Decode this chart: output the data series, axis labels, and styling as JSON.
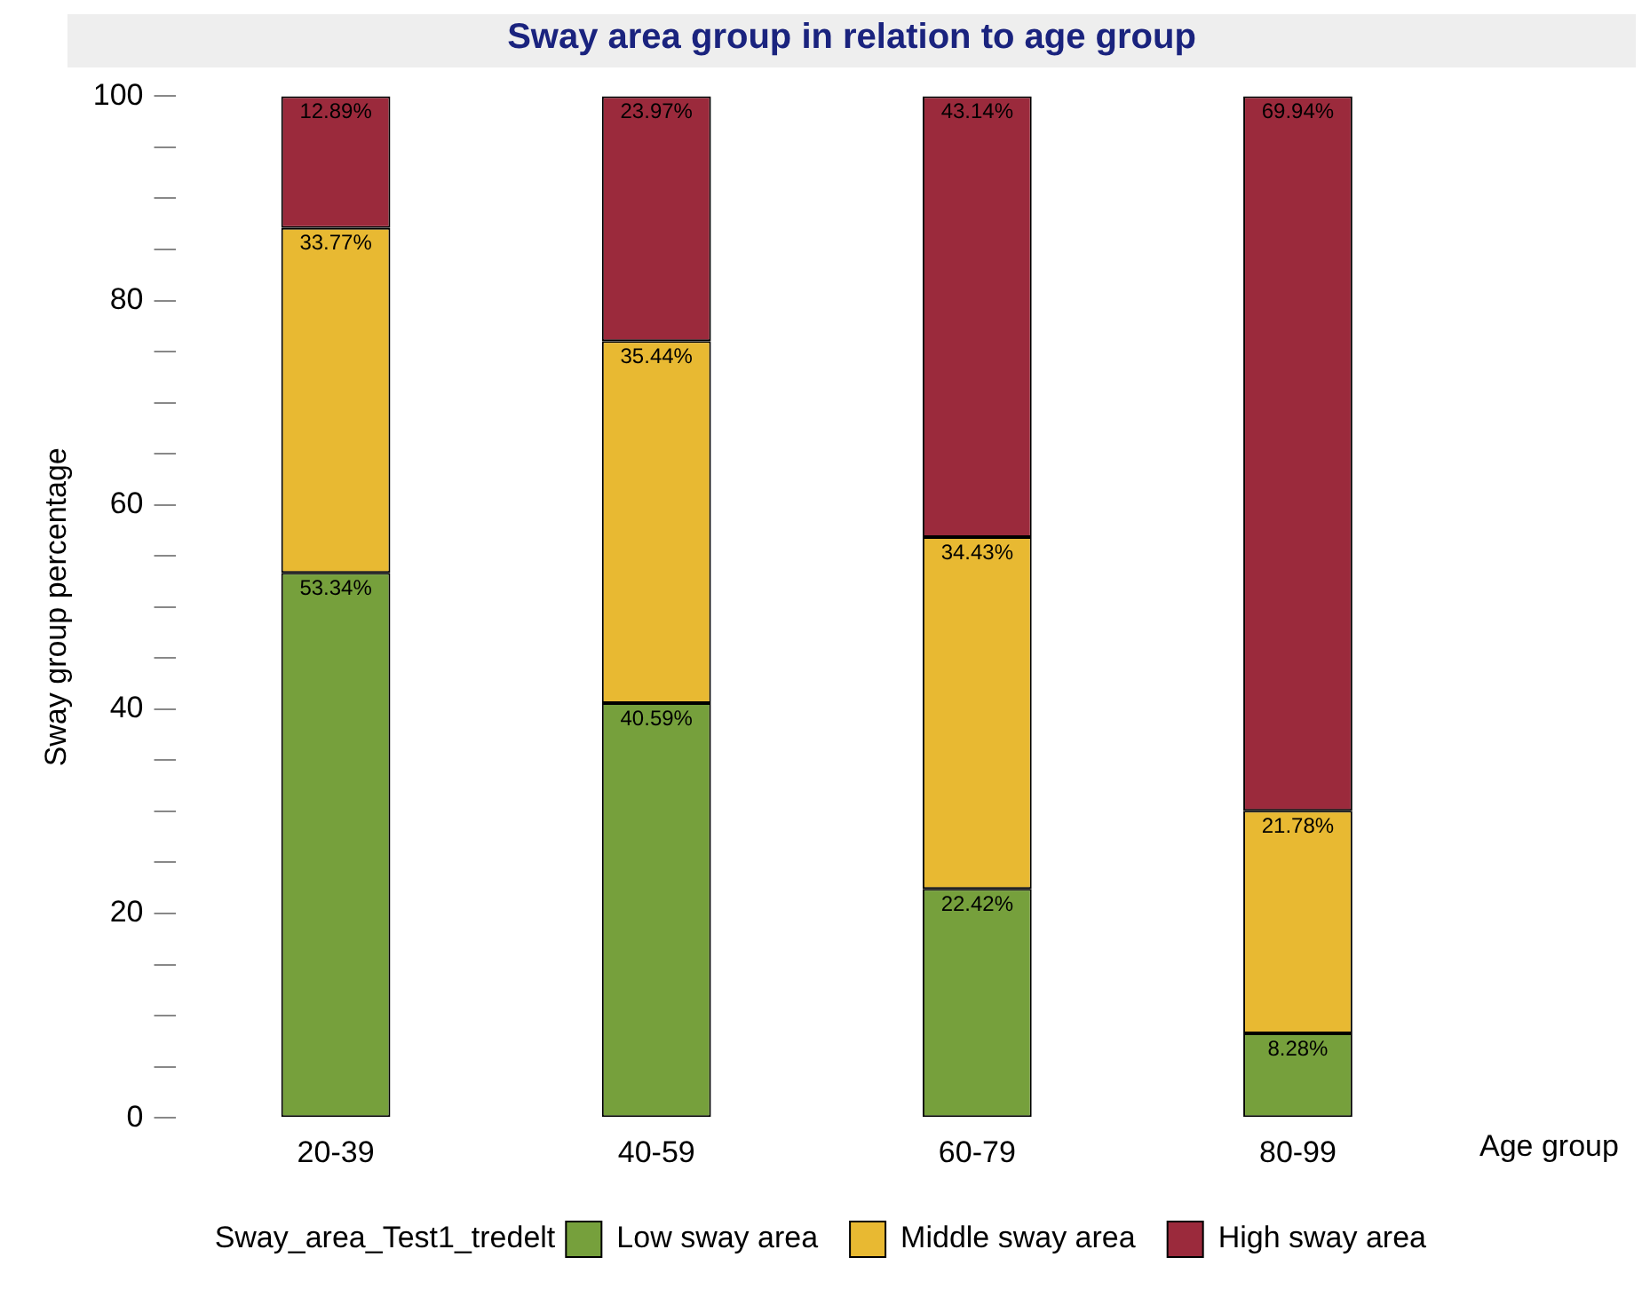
{
  "chart_data": {
    "type": "bar",
    "title": "Sway area group in relation to age group",
    "xlabel": "Age group",
    "ylabel": "Sway group percentage",
    "legend_title": "Sway_area_Test1_tredelt",
    "categories": [
      "20-39",
      "40-59",
      "60-79",
      "80-99"
    ],
    "stacked": true,
    "series": [
      {
        "name": "Low sway area",
        "color": "#76a03c",
        "values": [
          53.34,
          40.59,
          22.42,
          8.28
        ],
        "value_labels": [
          "53.34%",
          "40.59%",
          "22.42%",
          "8.28%"
        ]
      },
      {
        "name": "Middle sway area",
        "color": "#e8b932",
        "values": [
          33.77,
          35.44,
          34.43,
          21.78
        ],
        "value_labels": [
          "33.77%",
          "35.44%",
          "34.43%",
          "21.78%"
        ]
      },
      {
        "name": "High sway area",
        "color": "#9b2a3c",
        "values": [
          12.89,
          23.97,
          43.14,
          69.94
        ],
        "value_labels": [
          "12.89%",
          "23.97%",
          "43.14%",
          "69.94%"
        ]
      }
    ],
    "ylim": [
      0,
      100
    ],
    "yticks": [
      0,
      {
        "value": 5,
        "label": null
      },
      {
        "value": 10,
        "label": null
      },
      {
        "value": 15,
        "label": null
      },
      20,
      {
        "value": 25,
        "label": null
      },
      {
        "value": 30,
        "label": null
      },
      {
        "value": 35,
        "label": null
      },
      40,
      {
        "value": 45,
        "label": null
      },
      {
        "value": 50,
        "label": null
      },
      {
        "value": 55,
        "label": null
      },
      60,
      {
        "value": 65,
        "label": null
      },
      {
        "value": 70,
        "label": null
      },
      {
        "value": 75,
        "label": null
      },
      80,
      {
        "value": 85,
        "label": null
      },
      {
        "value": 90,
        "label": null
      },
      {
        "value": 95,
        "label": null
      },
      100
    ],
    "grid": false,
    "legend": "bottom"
  }
}
